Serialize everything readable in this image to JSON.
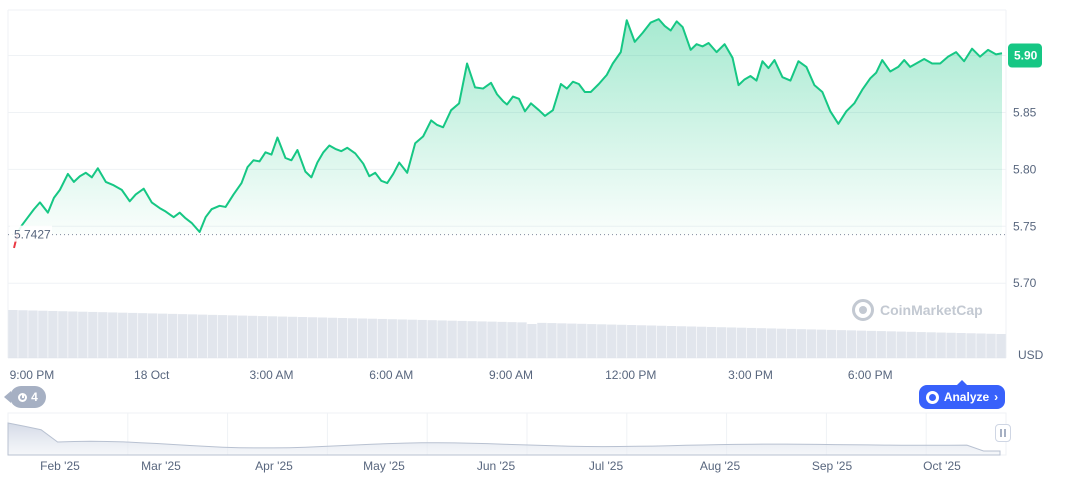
{
  "chart_data": {
    "type": "area",
    "ylabel": "USD",
    "ylim": [
      5.68,
      5.94
    ],
    "y_ticks": [
      "5.70",
      "5.75",
      "5.80",
      "5.85",
      "5.90"
    ],
    "x_ticks": [
      "9:00 PM",
      "18 Oct",
      "3:00 AM",
      "6:00 AM",
      "9:00 AM",
      "12:00 PM",
      "3:00 PM",
      "6:00 PM"
    ],
    "x_tick_hours": [
      0,
      3,
      6,
      9,
      12,
      15,
      18,
      21
    ],
    "x_range_hours": [
      -0.6,
      24.4
    ],
    "reference_value": 5.7427,
    "reference_label": "5.7427",
    "current_value": 5.9,
    "current_label": "5.90",
    "grid": true,
    "line_color": "#16c784",
    "below_color": "#ea3943",
    "series": [
      {
        "x": [
          -0.55,
          -0.45,
          -0.35,
          -0.25,
          -0.1,
          0.05,
          0.2,
          0.4,
          0.55,
          0.7,
          0.9,
          1.05,
          1.2,
          1.35,
          1.5,
          1.65,
          1.85,
          2.05,
          2.25,
          2.45,
          2.6,
          2.8,
          3.0,
          3.2,
          3.35,
          3.55,
          3.7,
          3.85,
          4.0,
          4.2,
          4.35,
          4.5,
          4.7,
          4.85,
          5.05,
          5.25,
          5.4,
          5.55,
          5.7,
          5.85,
          6.0,
          6.15,
          6.35,
          6.5,
          6.65,
          6.85,
          7.0,
          7.15,
          7.3,
          7.45,
          7.6,
          7.75,
          7.9,
          8.1,
          8.3,
          8.45,
          8.6,
          8.75,
          8.9,
          9.05,
          9.2,
          9.4,
          9.6,
          9.8,
          10.0,
          10.15,
          10.3,
          10.5,
          10.7,
          10.9,
          11.1,
          11.3,
          11.5,
          11.65,
          11.8,
          11.9,
          12.05,
          12.2,
          12.35,
          12.5,
          12.7,
          12.85,
          13.05,
          13.25,
          13.4,
          13.55,
          13.7,
          13.85,
          14.0,
          14.2,
          14.4,
          14.55,
          14.75,
          14.9,
          15.1,
          15.3,
          15.5,
          15.7,
          15.85,
          16.0,
          16.15,
          16.3,
          16.5,
          16.65,
          16.8,
          16.95,
          17.15,
          17.35,
          17.55,
          17.7,
          17.85,
          18.0,
          18.15,
          18.3,
          18.45,
          18.6,
          18.8,
          19.0,
          19.2,
          19.4,
          19.6,
          19.8,
          20.0,
          20.2,
          20.4,
          20.6,
          20.8,
          21.0,
          21.15,
          21.3,
          21.5,
          21.7,
          21.85,
          22.0,
          22.15,
          22.35,
          22.55,
          22.75,
          22.95,
          23.15,
          23.35,
          23.55,
          23.75,
          23.95,
          24.15,
          24.3
        ],
        "y": [
          5.7427,
          5.731,
          5.745,
          5.751,
          5.758,
          5.765,
          5.771,
          5.762,
          5.775,
          5.782,
          5.796,
          5.789,
          5.794,
          5.797,
          5.793,
          5.801,
          5.789,
          5.786,
          5.782,
          5.772,
          5.778,
          5.783,
          5.771,
          5.766,
          5.763,
          5.758,
          5.762,
          5.757,
          5.753,
          5.745,
          5.758,
          5.765,
          5.768,
          5.767,
          5.778,
          5.788,
          5.802,
          5.808,
          5.807,
          5.815,
          5.813,
          5.828,
          5.81,
          5.808,
          5.817,
          5.798,
          5.793,
          5.806,
          5.815,
          5.821,
          5.818,
          5.816,
          5.819,
          5.814,
          5.805,
          5.794,
          5.797,
          5.79,
          5.788,
          5.796,
          5.806,
          5.797,
          5.823,
          5.829,
          5.843,
          5.839,
          5.837,
          5.852,
          5.858,
          5.893,
          5.872,
          5.871,
          5.876,
          5.866,
          5.86,
          5.857,
          5.864,
          5.862,
          5.851,
          5.858,
          5.852,
          5.847,
          5.852,
          5.875,
          5.871,
          5.877,
          5.875,
          5.868,
          5.868,
          5.875,
          5.883,
          5.893,
          5.903,
          5.931,
          5.912,
          5.92,
          5.929,
          5.932,
          5.926,
          5.922,
          5.93,
          5.925,
          5.905,
          5.91,
          5.908,
          5.911,
          5.903,
          5.91,
          5.898,
          5.874,
          5.879,
          5.882,
          5.878,
          5.895,
          5.889,
          5.896,
          5.881,
          5.878,
          5.895,
          5.89,
          5.874,
          5.868,
          5.851,
          5.84,
          5.851,
          5.858,
          5.87,
          5.88,
          5.885,
          5.896,
          5.886,
          5.89,
          5.896,
          5.89,
          5.893,
          5.897,
          5.893,
          5.893,
          5.899,
          5.903,
          5.895,
          5.906,
          5.899,
          5.905,
          5.901,
          5.902
        ]
      }
    ],
    "volume_bars": 100,
    "navigator": {
      "x_labels": [
        "Feb '25",
        "Mar '25",
        "Apr '25",
        "May '25",
        "Jun '25",
        "Jul '25",
        "Aug '25",
        "Sep '25",
        "Oct '25"
      ]
    }
  },
  "watermark": "CoinMarketCap",
  "history_badge": {
    "count": "4",
    "icon": "history-icon"
  },
  "analyze": {
    "label": "Analyze",
    "icon": "ai-icon",
    "chevron": "›"
  }
}
